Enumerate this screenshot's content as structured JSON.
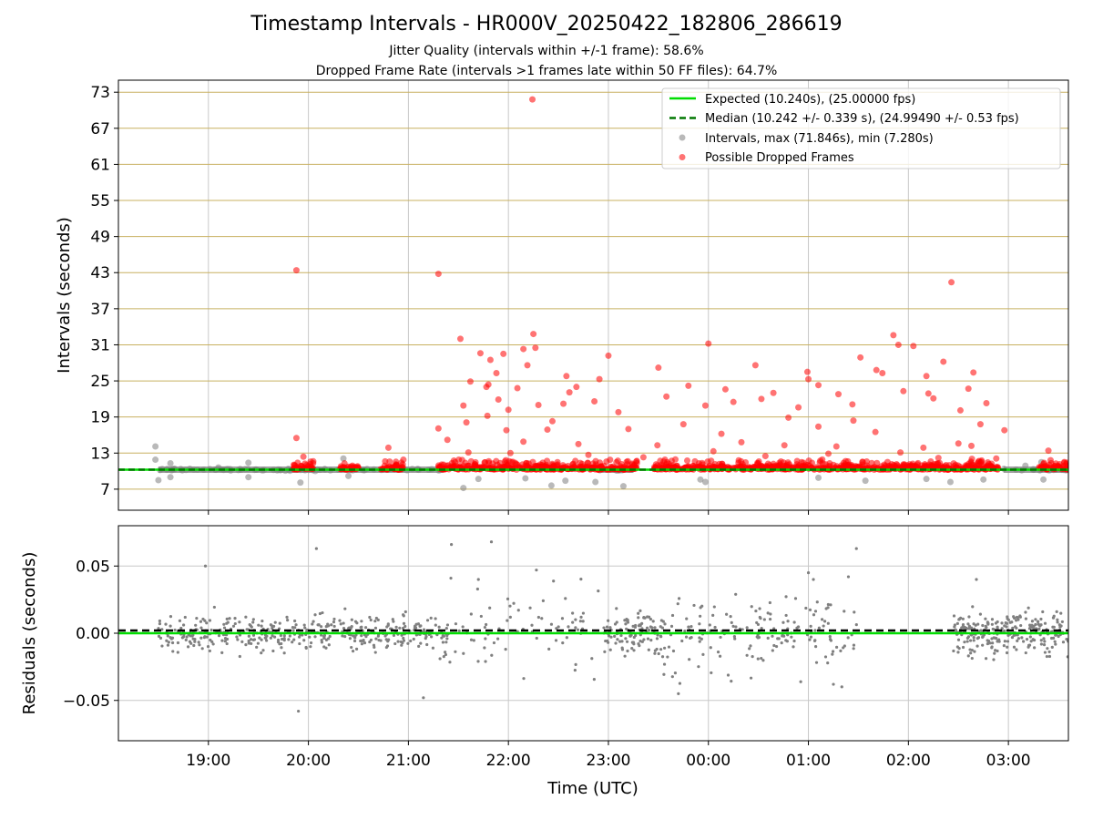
{
  "figure": {
    "title": "Timestamp Intervals - HR000V_20250422_182806_286619",
    "subtitle1": "Jitter Quality (intervals within +/-1 frame): 58.6%",
    "subtitle2": "Dropped Frame Rate (intervals >1 frames late within 50 FF files): 64.7%"
  },
  "colors": {
    "expected": "#00dd00",
    "median": "#007700",
    "intervals": "#808080",
    "dropped": "#ff0000",
    "hgrid": "#c8b060",
    "vgrid": "#c8c8c8"
  },
  "chart_data": [
    {
      "type": "scatter",
      "ylabel": "Intervals (seconds)",
      "xlim_hours": [
        18.1,
        27.6
      ],
      "ylim": [
        3.5,
        75
      ],
      "yticks": [
        7,
        13,
        19,
        25,
        31,
        37,
        43,
        49,
        55,
        61,
        67,
        73
      ],
      "grid": "horizontal gold at y ticks, vertical gray at hour ticks",
      "legend_position": "top-right",
      "legend": [
        "Expected (10.240s), (25.00000 fps)",
        "Median (10.242 +/- 0.339 s), (24.99490 +/- 0.53 fps)",
        "Intervals, max (71.846s), min (7.280s)",
        "Possible Dropped Frames"
      ],
      "expected_interval": 10.24,
      "median_interval": 10.242,
      "dense_normal_band": [
        [
          18.5,
          21.35
        ],
        [
          22.9,
          23.25
        ],
        [
          26.95,
          27.6
        ]
      ],
      "dense_dropped_band": [
        [
          19.85,
          20.05
        ],
        [
          20.3,
          20.5
        ],
        [
          20.7,
          20.95
        ],
        [
          21.3,
          23.3
        ],
        [
          23.45,
          26.9
        ],
        [
          27.3,
          27.6
        ]
      ],
      "intervals_outliers": [
        {
          "x": 18.47,
          "y": 14.1
        },
        {
          "x": 18.47,
          "y": 11.9
        },
        {
          "x": 18.5,
          "y": 8.5
        },
        {
          "x": 18.62,
          "y": 11.3
        },
        {
          "x": 18.62,
          "y": 9.0
        },
        {
          "x": 19.1,
          "y": 10.6
        },
        {
          "x": 19.4,
          "y": 11.4
        },
        {
          "x": 19.4,
          "y": 9.0
        },
        {
          "x": 19.92,
          "y": 8.1
        },
        {
          "x": 20.35,
          "y": 12.1
        },
        {
          "x": 20.4,
          "y": 9.2
        },
        {
          "x": 21.55,
          "y": 7.2
        },
        {
          "x": 21.7,
          "y": 8.7
        },
        {
          "x": 22.17,
          "y": 8.8
        },
        {
          "x": 22.43,
          "y": 7.6
        },
        {
          "x": 22.57,
          "y": 8.4
        },
        {
          "x": 22.87,
          "y": 8.2
        },
        {
          "x": 23.15,
          "y": 7.5
        },
        {
          "x": 23.92,
          "y": 8.6
        },
        {
          "x": 23.97,
          "y": 8.2
        },
        {
          "x": 25.1,
          "y": 8.9
        },
        {
          "x": 25.57,
          "y": 8.4
        },
        {
          "x": 26.18,
          "y": 8.7
        },
        {
          "x": 26.42,
          "y": 8.2
        },
        {
          "x": 26.75,
          "y": 8.6
        },
        {
          "x": 27.17,
          "y": 10.9
        },
        {
          "x": 27.33,
          "y": 11.5
        },
        {
          "x": 27.35,
          "y": 8.6
        }
      ],
      "dropped_outliers": [
        {
          "x": 22.24,
          "y": 71.8
        },
        {
          "x": 19.88,
          "y": 43.4
        },
        {
          "x": 21.3,
          "y": 42.8
        },
        {
          "x": 26.43,
          "y": 41.4
        },
        {
          "x": 22.25,
          "y": 32.8
        },
        {
          "x": 21.52,
          "y": 32.0
        },
        {
          "x": 25.85,
          "y": 32.6
        },
        {
          "x": 25.9,
          "y": 31.0
        },
        {
          "x": 24.0,
          "y": 31.2
        },
        {
          "x": 26.05,
          "y": 30.8
        },
        {
          "x": 22.27,
          "y": 30.5
        },
        {
          "x": 22.15,
          "y": 30.3
        },
        {
          "x": 21.72,
          "y": 29.6
        },
        {
          "x": 21.95,
          "y": 29.5
        },
        {
          "x": 23.0,
          "y": 29.2
        },
        {
          "x": 25.52,
          "y": 28.9
        },
        {
          "x": 21.82,
          "y": 28.5
        },
        {
          "x": 26.35,
          "y": 28.2
        },
        {
          "x": 22.19,
          "y": 27.6
        },
        {
          "x": 24.47,
          "y": 27.6
        },
        {
          "x": 23.5,
          "y": 27.2
        },
        {
          "x": 25.68,
          "y": 26.8
        },
        {
          "x": 25.74,
          "y": 26.3
        },
        {
          "x": 21.88,
          "y": 26.3
        },
        {
          "x": 24.99,
          "y": 26.5
        },
        {
          "x": 26.65,
          "y": 26.4
        },
        {
          "x": 22.58,
          "y": 25.8
        },
        {
          "x": 25.0,
          "y": 25.3
        },
        {
          "x": 26.18,
          "y": 25.8
        },
        {
          "x": 22.91,
          "y": 25.3
        },
        {
          "x": 21.62,
          "y": 24.9
        },
        {
          "x": 23.8,
          "y": 24.2
        },
        {
          "x": 22.68,
          "y": 24.0
        },
        {
          "x": 25.1,
          "y": 24.3
        },
        {
          "x": 21.78,
          "y": 24.0
        },
        {
          "x": 22.09,
          "y": 23.8
        },
        {
          "x": 24.17,
          "y": 23.6
        },
        {
          "x": 22.61,
          "y": 23.1
        },
        {
          "x": 26.2,
          "y": 22.9
        },
        {
          "x": 22.86,
          "y": 21.6
        },
        {
          "x": 22.55,
          "y": 21.2
        },
        {
          "x": 26.6,
          "y": 23.7
        },
        {
          "x": 21.55,
          "y": 20.9
        },
        {
          "x": 23.58,
          "y": 22.4
        },
        {
          "x": 22.0,
          "y": 20.2
        },
        {
          "x": 24.53,
          "y": 22.0
        },
        {
          "x": 23.97,
          "y": 20.9
        },
        {
          "x": 25.44,
          "y": 21.1
        },
        {
          "x": 26.78,
          "y": 21.3
        },
        {
          "x": 23.1,
          "y": 19.8
        },
        {
          "x": 21.79,
          "y": 19.2
        },
        {
          "x": 24.8,
          "y": 18.9
        },
        {
          "x": 25.45,
          "y": 18.4
        },
        {
          "x": 26.52,
          "y": 20.1
        },
        {
          "x": 21.58,
          "y": 18.1
        },
        {
          "x": 22.44,
          "y": 18.3
        },
        {
          "x": 23.75,
          "y": 17.8
        },
        {
          "x": 25.1,
          "y": 17.4
        },
        {
          "x": 21.3,
          "y": 17.1
        },
        {
          "x": 21.98,
          "y": 16.8
        },
        {
          "x": 22.39,
          "y": 16.9
        },
        {
          "x": 23.2,
          "y": 17.0
        },
        {
          "x": 24.13,
          "y": 16.2
        },
        {
          "x": 25.67,
          "y": 16.5
        },
        {
          "x": 26.72,
          "y": 17.8
        },
        {
          "x": 26.96,
          "y": 16.8
        },
        {
          "x": 19.88,
          "y": 15.5
        },
        {
          "x": 21.39,
          "y": 15.2
        },
        {
          "x": 22.15,
          "y": 14.9
        },
        {
          "x": 22.7,
          "y": 14.5
        },
        {
          "x": 23.49,
          "y": 14.3
        },
        {
          "x": 24.33,
          "y": 14.8
        },
        {
          "x": 24.76,
          "y": 14.3
        },
        {
          "x": 25.28,
          "y": 14.1
        },
        {
          "x": 26.15,
          "y": 13.9
        },
        {
          "x": 26.5,
          "y": 14.6
        },
        {
          "x": 26.63,
          "y": 14.2
        },
        {
          "x": 27.4,
          "y": 13.4
        },
        {
          "x": 20.8,
          "y": 13.9
        },
        {
          "x": 19.95,
          "y": 12.4
        },
        {
          "x": 20.95,
          "y": 11.9
        },
        {
          "x": 21.6,
          "y": 13.1
        },
        {
          "x": 22.02,
          "y": 13.0
        },
        {
          "x": 22.8,
          "y": 12.7
        },
        {
          "x": 23.35,
          "y": 12.3
        },
        {
          "x": 24.05,
          "y": 13.3
        },
        {
          "x": 24.57,
          "y": 12.5
        },
        {
          "x": 25.2,
          "y": 12.9
        },
        {
          "x": 25.92,
          "y": 13.1
        },
        {
          "x": 26.3,
          "y": 12.2
        },
        {
          "x": 21.8,
          "y": 24.4
        },
        {
          "x": 24.25,
          "y": 21.5
        },
        {
          "x": 25.3,
          "y": 22.8
        },
        {
          "x": 25.95,
          "y": 23.3
        },
        {
          "x": 26.25,
          "y": 22.1
        },
        {
          "x": 24.65,
          "y": 23.0
        },
        {
          "x": 22.3,
          "y": 21.0
        },
        {
          "x": 21.9,
          "y": 21.9
        },
        {
          "x": 24.9,
          "y": 20.6
        }
      ]
    },
    {
      "type": "scatter",
      "xlabel": "Time (UTC)",
      "ylabel": "Residuals (seconds)",
      "xlim_hours": [
        18.1,
        27.6
      ],
      "ylim": [
        -0.08,
        0.08
      ],
      "yticks": [
        {
          "value": 0.05,
          "label": "0.05"
        },
        {
          "value": 0.0,
          "label": "0.00"
        },
        {
          "value": -0.05,
          "label": "−0.05"
        }
      ],
      "xticks": [
        {
          "hour": 19,
          "label": "19:00"
        },
        {
          "hour": 20,
          "label": "20:00"
        },
        {
          "hour": 21,
          "label": "21:00"
        },
        {
          "hour": 22,
          "label": "22:00"
        },
        {
          "hour": 23,
          "label": "23:00"
        },
        {
          "hour": 24,
          "label": "00:00"
        },
        {
          "hour": 25,
          "label": "01:00"
        },
        {
          "hour": 26,
          "label": "02:00"
        },
        {
          "hour": 27,
          "label": "03:00"
        }
      ],
      "residual_clusters": [
        {
          "range": [
            18.5,
            21.4
          ],
          "sd": 0.009,
          "n": 420
        },
        {
          "range": [
            21.4,
            22.9
          ],
          "sd": 0.02,
          "n": 70
        },
        {
          "range": [
            22.95,
            23.55
          ],
          "sd": 0.011,
          "n": 110
        },
        {
          "range": [
            23.55,
            25.5
          ],
          "sd": 0.02,
          "n": 160
        },
        {
          "range": [
            26.45,
            27.6
          ],
          "sd": 0.011,
          "n": 260
        }
      ],
      "residual_outliers": [
        {
          "x": 18.97,
          "y": 0.05
        },
        {
          "x": 20.08,
          "y": 0.063
        },
        {
          "x": 21.43,
          "y": 0.066
        },
        {
          "x": 21.83,
          "y": 0.068
        },
        {
          "x": 22.28,
          "y": 0.047
        },
        {
          "x": 19.9,
          "y": -0.058
        },
        {
          "x": 21.15,
          "y": -0.048
        },
        {
          "x": 25.0,
          "y": 0.045
        },
        {
          "x": 25.05,
          "y": 0.04
        },
        {
          "x": 25.4,
          "y": 0.042
        },
        {
          "x": 25.48,
          "y": 0.063
        },
        {
          "x": 21.7,
          "y": 0.04
        },
        {
          "x": 26.68,
          "y": 0.04
        },
        {
          "x": 23.7,
          "y": -0.045
        },
        {
          "x": 25.25,
          "y": -0.038
        }
      ],
      "expected_residual": 0.0,
      "median_residual": 0.002
    }
  ]
}
